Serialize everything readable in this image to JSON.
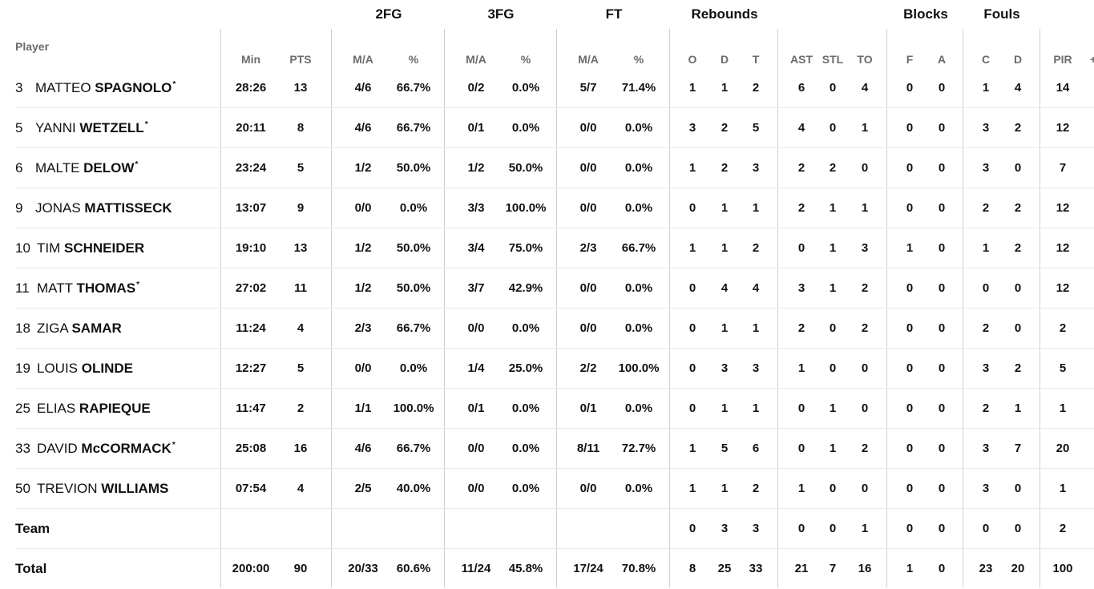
{
  "group_headers": {
    "fg2": "2FG",
    "fg3": "3FG",
    "ft": "FT",
    "reb": "Rebounds",
    "blk": "Blocks",
    "fouls": "Fouls"
  },
  "columns": {
    "player": "Player",
    "min": "Min",
    "pts": "PTS",
    "fg2_ma": "M/A",
    "fg2_pct": "%",
    "fg3_ma": "M/A",
    "fg3_pct": "%",
    "ft_ma": "M/A",
    "ft_pct": "%",
    "reb_o": "O",
    "reb_d": "D",
    "reb_t": "T",
    "ast": "AST",
    "stl": "STL",
    "to": "TO",
    "blk_f": "F",
    "blk_a": "A",
    "foul_c": "C",
    "foul_d": "D",
    "pir": "PIR",
    "pm": "+/"
  },
  "players": [
    {
      "num": "3",
      "first": "MATTEO",
      "last": "SPAGNOLO",
      "starter": true,
      "min": "28:26",
      "pts": "13",
      "fg2": "4/6",
      "fg2p": "66.7%",
      "fg3": "0/2",
      "fg3p": "0.0%",
      "ft": "5/7",
      "ftp": "71.4%",
      "o": "1",
      "d": "1",
      "t": "2",
      "ast": "6",
      "stl": "0",
      "to": "4",
      "bf": "0",
      "ba": "0",
      "fc": "1",
      "fd": "4",
      "pir": "14"
    },
    {
      "num": "5",
      "first": "YANNI",
      "last": "WETZELL",
      "starter": true,
      "min": "20:11",
      "pts": "8",
      "fg2": "4/6",
      "fg2p": "66.7%",
      "fg3": "0/1",
      "fg3p": "0.0%",
      "ft": "0/0",
      "ftp": "0.0%",
      "o": "3",
      "d": "2",
      "t": "5",
      "ast": "4",
      "stl": "0",
      "to": "1",
      "bf": "0",
      "ba": "0",
      "fc": "3",
      "fd": "2",
      "pir": "12"
    },
    {
      "num": "6",
      "first": "MALTE",
      "last": "DELOW",
      "starter": true,
      "min": "23:24",
      "pts": "5",
      "fg2": "1/2",
      "fg2p": "50.0%",
      "fg3": "1/2",
      "fg3p": "50.0%",
      "ft": "0/0",
      "ftp": "0.0%",
      "o": "1",
      "d": "2",
      "t": "3",
      "ast": "2",
      "stl": "2",
      "to": "0",
      "bf": "0",
      "ba": "0",
      "fc": "3",
      "fd": "0",
      "pir": "7"
    },
    {
      "num": "9",
      "first": "JONAS",
      "last": "MATTISSECK",
      "starter": false,
      "min": "13:07",
      "pts": "9",
      "fg2": "0/0",
      "fg2p": "0.0%",
      "fg3": "3/3",
      "fg3p": "100.0%",
      "ft": "0/0",
      "ftp": "0.0%",
      "o": "0",
      "d": "1",
      "t": "1",
      "ast": "2",
      "stl": "1",
      "to": "1",
      "bf": "0",
      "ba": "0",
      "fc": "2",
      "fd": "2",
      "pir": "12"
    },
    {
      "num": "10",
      "first": "TIM",
      "last": "SCHNEIDER",
      "starter": false,
      "min": "19:10",
      "pts": "13",
      "fg2": "1/2",
      "fg2p": "50.0%",
      "fg3": "3/4",
      "fg3p": "75.0%",
      "ft": "2/3",
      "ftp": "66.7%",
      "o": "1",
      "d": "1",
      "t": "2",
      "ast": "0",
      "stl": "1",
      "to": "3",
      "bf": "1",
      "ba": "0",
      "fc": "1",
      "fd": "2",
      "pir": "12"
    },
    {
      "num": "11",
      "first": "MATT",
      "last": "THOMAS",
      "starter": true,
      "min": "27:02",
      "pts": "11",
      "fg2": "1/2",
      "fg2p": "50.0%",
      "fg3": "3/7",
      "fg3p": "42.9%",
      "ft": "0/0",
      "ftp": "0.0%",
      "o": "0",
      "d": "4",
      "t": "4",
      "ast": "3",
      "stl": "1",
      "to": "2",
      "bf": "0",
      "ba": "0",
      "fc": "0",
      "fd": "0",
      "pir": "12"
    },
    {
      "num": "18",
      "first": "ZIGA",
      "last": "SAMAR",
      "starter": false,
      "min": "11:24",
      "pts": "4",
      "fg2": "2/3",
      "fg2p": "66.7%",
      "fg3": "0/0",
      "fg3p": "0.0%",
      "ft": "0/0",
      "ftp": "0.0%",
      "o": "0",
      "d": "1",
      "t": "1",
      "ast": "2",
      "stl": "0",
      "to": "2",
      "bf": "0",
      "ba": "0",
      "fc": "2",
      "fd": "0",
      "pir": "2"
    },
    {
      "num": "19",
      "first": "LOUIS",
      "last": "OLINDE",
      "starter": false,
      "min": "12:27",
      "pts": "5",
      "fg2": "0/0",
      "fg2p": "0.0%",
      "fg3": "1/4",
      "fg3p": "25.0%",
      "ft": "2/2",
      "ftp": "100.0%",
      "o": "0",
      "d": "3",
      "t": "3",
      "ast": "1",
      "stl": "0",
      "to": "0",
      "bf": "0",
      "ba": "0",
      "fc": "3",
      "fd": "2",
      "pir": "5"
    },
    {
      "num": "25",
      "first": "ELIAS",
      "last": "RAPIEQUE",
      "starter": false,
      "min": "11:47",
      "pts": "2",
      "fg2": "1/1",
      "fg2p": "100.0%",
      "fg3": "0/1",
      "fg3p": "0.0%",
      "ft": "0/1",
      "ftp": "0.0%",
      "o": "0",
      "d": "1",
      "t": "1",
      "ast": "0",
      "stl": "1",
      "to": "0",
      "bf": "0",
      "ba": "0",
      "fc": "2",
      "fd": "1",
      "pir": "1"
    },
    {
      "num": "33",
      "first": "DAVID",
      "last": "McCORMACK",
      "starter": true,
      "min": "25:08",
      "pts": "16",
      "fg2": "4/6",
      "fg2p": "66.7%",
      "fg3": "0/0",
      "fg3p": "0.0%",
      "ft": "8/11",
      "ftp": "72.7%",
      "o": "1",
      "d": "5",
      "t": "6",
      "ast": "0",
      "stl": "1",
      "to": "2",
      "bf": "0",
      "ba": "0",
      "fc": "3",
      "fd": "7",
      "pir": "20"
    },
    {
      "num": "50",
      "first": "TREVION",
      "last": "WILLIAMS",
      "starter": false,
      "min": "07:54",
      "pts": "4",
      "fg2": "2/5",
      "fg2p": "40.0%",
      "fg3": "0/0",
      "fg3p": "0.0%",
      "ft": "0/0",
      "ftp": "0.0%",
      "o": "1",
      "d": "1",
      "t": "2",
      "ast": "1",
      "stl": "0",
      "to": "0",
      "bf": "0",
      "ba": "0",
      "fc": "3",
      "fd": "0",
      "pir": "1"
    }
  ],
  "team": {
    "label": "Team",
    "o": "0",
    "d": "3",
    "t": "3",
    "ast": "0",
    "stl": "0",
    "to": "1",
    "bf": "0",
    "ba": "0",
    "fc": "0",
    "fd": "0",
    "pir": "2"
  },
  "total": {
    "label": "Total",
    "min": "200:00",
    "pts": "90",
    "fg2": "20/33",
    "fg2p": "60.6%",
    "fg3": "11/24",
    "fg3p": "45.8%",
    "ft": "17/24",
    "ftp": "70.8%",
    "o": "8",
    "d": "25",
    "t": "33",
    "ast": "21",
    "stl": "7",
    "to": "16",
    "bf": "1",
    "ba": "0",
    "fc": "23",
    "fd": "20",
    "pir": "100"
  },
  "starter_mark": "*"
}
